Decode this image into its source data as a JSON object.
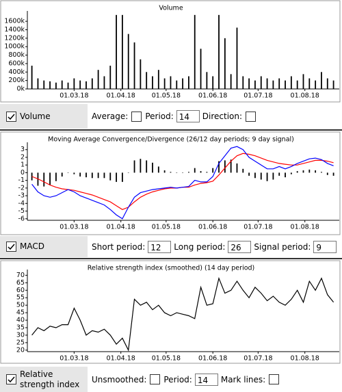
{
  "chart_data": [
    {
      "type": "bar",
      "title": "Volume",
      "x": [
        "01.02.18",
        "05.02.18",
        "09.02.18",
        "13.02.18",
        "17.02.18",
        "21.02.18",
        "25.02.18",
        "01.03.18",
        "05.03.18",
        "09.03.18",
        "13.03.18",
        "17.03.18",
        "21.03.18",
        "25.03.18",
        "29.03.18",
        "02.04.18",
        "06.04.18",
        "10.04.18",
        "14.04.18",
        "18.04.18",
        "22.04.18",
        "26.04.18",
        "30.04.18",
        "04.05.18",
        "08.05.18",
        "12.05.18",
        "16.05.18",
        "20.05.18",
        "24.05.18",
        "28.05.18",
        "01.06.18",
        "05.06.18",
        "09.06.18",
        "13.06.18",
        "17.06.18",
        "21.06.18",
        "25.06.18",
        "29.06.18",
        "03.07.18",
        "07.07.18",
        "11.07.18",
        "15.07.18",
        "19.07.18",
        "23.07.18",
        "27.07.18",
        "31.07.18",
        "04.08.18",
        "08.08.18",
        "12.08.18",
        "16.08.18",
        "20.08.18"
      ],
      "series": [
        {
          "color": "#000000",
          "values": [
            550000,
            250000,
            200000,
            180000,
            150000,
            200000,
            150000,
            250000,
            200000,
            180000,
            250000,
            450000,
            300000,
            550000,
            1750000,
            1750000,
            1300000,
            1100000,
            700000,
            400000,
            300000,
            450000,
            250000,
            300000,
            200000,
            250000,
            300000,
            1750000,
            950000,
            400000,
            300000,
            1750000,
            1200000,
            350000,
            1450000,
            300000,
            250000,
            200000,
            300000,
            250000,
            200000,
            250000,
            200000,
            300000,
            200000,
            350000,
            250000,
            200000,
            400000,
            250000,
            200000
          ]
        }
      ],
      "xlim": [
        "29.01.18",
        "22.08.18"
      ],
      "xticks": [
        "01.03.18",
        "01.04.18",
        "01.05.18",
        "01.06.18",
        "01.07.18",
        "01.08.18"
      ],
      "ylim": [
        0,
        1780000
      ],
      "yticks": [
        {
          "value": 0,
          "label": "0k"
        },
        {
          "value": 200000,
          "label": "200k"
        },
        {
          "value": 400000,
          "label": "400k"
        },
        {
          "value": 600000,
          "label": "600k"
        },
        {
          "value": 800000,
          "label": "800k"
        },
        {
          "value": 1000000,
          "label": "1000k"
        },
        {
          "value": 1200000,
          "label": "1200k"
        },
        {
          "value": 1400000,
          "label": "1400k"
        },
        {
          "value": 1600000,
          "label": "1600k"
        }
      ]
    },
    {
      "type": "line",
      "title": "Moving Average Convergence/Divergence (26/12 day periods; 9 day signal)",
      "x": [
        "01.02.18",
        "05.02.18",
        "09.02.18",
        "13.02.18",
        "17.02.18",
        "21.02.18",
        "25.02.18",
        "01.03.18",
        "05.03.18",
        "09.03.18",
        "13.03.18",
        "17.03.18",
        "21.03.18",
        "25.03.18",
        "29.03.18",
        "02.04.18",
        "06.04.18",
        "10.04.18",
        "14.04.18",
        "18.04.18",
        "22.04.18",
        "26.04.18",
        "30.04.18",
        "04.05.18",
        "08.05.18",
        "12.05.18",
        "16.05.18",
        "20.05.18",
        "24.05.18",
        "28.05.18",
        "01.06.18",
        "05.06.18",
        "09.06.18",
        "13.06.18",
        "17.06.18",
        "21.06.18",
        "25.06.18",
        "29.06.18",
        "03.07.18",
        "07.07.18",
        "11.07.18",
        "15.07.18",
        "19.07.18",
        "23.07.18",
        "27.07.18",
        "31.07.18",
        "04.08.18",
        "08.08.18",
        "12.08.18",
        "16.08.18",
        "20.08.18"
      ],
      "series": [
        {
          "type": "bar",
          "color": "#000000",
          "values": [
            -1,
            -1.7,
            -1.8,
            -1.6,
            -1.1,
            -0.5,
            0,
            -0.2,
            -0.5,
            -0.6,
            -0.7,
            -0.7,
            -0.7,
            -1,
            -1.2,
            -1.2,
            0,
            1.6,
            1.8,
            1.6,
            1.3,
            0.8,
            0.3,
            0.1,
            0,
            0,
            0.1,
            0.6,
            0.2,
            0.1,
            0.6,
            1.5,
            1.6,
            1.7,
            1.2,
            0.5,
            -0.4,
            -0.7,
            -0.9,
            -1.1,
            -0.9,
            -0.4,
            -0.6,
            -0.2,
            0.2,
            0.3,
            0.4,
            0.3,
            0.1,
            -0.3,
            -0.4
          ]
        },
        {
          "type": "line",
          "color": "#ff0000",
          "values": [
            -0.5,
            -0.8,
            -1.2,
            -1.6,
            -1.9,
            -2.1,
            -2.2,
            -2.3,
            -2.5,
            -2.7,
            -2.9,
            -3.2,
            -3.5,
            -3.8,
            -4.3,
            -4.8,
            -4.5,
            -3.8,
            -3.2,
            -2.8,
            -2.5,
            -2.3,
            -2.1,
            -2,
            -2,
            -1.9,
            -1.9,
            -1.6,
            -1.4,
            -1.3,
            -1.1,
            -0.3,
            0.6,
            1.5,
            2.2,
            2.5,
            2.4,
            2.2,
            1.9,
            1.6,
            1.4,
            1.2,
            1.1,
            1,
            1,
            1.2,
            1.4,
            1.6,
            1.6,
            1.5,
            1.3
          ]
        },
        {
          "type": "line",
          "color": "#0000ff",
          "values": [
            -1.5,
            -2.5,
            -3,
            -3.2,
            -3,
            -2.6,
            -2.2,
            -2.5,
            -3,
            -3.3,
            -3.6,
            -3.9,
            -4.2,
            -4.8,
            -5.5,
            -6,
            -4.5,
            -3.2,
            -2.6,
            -2.4,
            -2.2,
            -2.1,
            -2,
            -1.9,
            -2,
            -1.9,
            -1.8,
            -1,
            -1.2,
            -1.2,
            -0.5,
            1.2,
            2.2,
            3.2,
            3.4,
            3,
            2,
            1.5,
            1,
            0.5,
            0.5,
            0.8,
            0.5,
            0.8,
            1.2,
            1.5,
            1.8,
            1.9,
            1.7,
            1.2,
            0.9
          ]
        }
      ],
      "xlim": [
        "29.01.18",
        "22.08.18"
      ],
      "xticks": [
        "01.03.18",
        "01.04.18",
        "01.05.18",
        "01.06.18",
        "01.07.18",
        "01.08.18"
      ],
      "ylim": [
        -6.2,
        3.6
      ],
      "yticks": [
        -6,
        -5,
        -4,
        -3,
        -2,
        -1,
        0,
        1,
        2,
        3
      ]
    },
    {
      "type": "line",
      "title": "Relative strength index (smoothed) (14 day period)",
      "x": [
        "01.02.18",
        "05.02.18",
        "09.02.18",
        "13.02.18",
        "17.02.18",
        "21.02.18",
        "25.02.18",
        "01.03.18",
        "05.03.18",
        "09.03.18",
        "13.03.18",
        "17.03.18",
        "21.03.18",
        "25.03.18",
        "29.03.18",
        "02.04.18",
        "06.04.18",
        "10.04.18",
        "14.04.18",
        "18.04.18",
        "22.04.18",
        "26.04.18",
        "30.04.18",
        "04.05.18",
        "08.05.18",
        "12.05.18",
        "16.05.18",
        "20.05.18",
        "24.05.18",
        "28.05.18",
        "01.06.18",
        "05.06.18",
        "09.06.18",
        "13.06.18",
        "17.06.18",
        "21.06.18",
        "25.06.18",
        "29.06.18",
        "03.07.18",
        "07.07.18",
        "11.07.18",
        "15.07.18",
        "19.07.18",
        "23.07.18",
        "27.07.18",
        "31.07.18",
        "04.08.18",
        "08.08.18",
        "12.08.18",
        "16.08.18",
        "20.08.18"
      ],
      "series": [
        {
          "type": "line",
          "color": "#000000",
          "values": [
            30,
            35,
            33,
            36,
            35,
            37,
            37,
            48,
            40,
            30,
            33,
            32,
            34,
            30,
            24,
            28,
            20,
            54,
            50,
            52,
            47,
            50,
            45,
            43,
            45,
            44,
            43,
            41,
            62,
            50,
            51,
            68,
            58,
            60,
            66,
            60,
            55,
            62,
            58,
            53,
            56,
            52,
            50,
            54,
            60,
            52,
            66,
            60,
            68,
            57,
            52
          ]
        }
      ],
      "xlim": [
        "29.01.18",
        "22.08.18"
      ],
      "xticks": [
        "01.03.18",
        "01.04.18",
        "01.05.18",
        "01.06.18",
        "01.07.18",
        "01.08.18"
      ],
      "ylim": [
        19,
        72
      ],
      "yticks": [
        20,
        25,
        30,
        35,
        40,
        45,
        50,
        55,
        60,
        65,
        70
      ]
    }
  ],
  "controls": [
    {
      "label": "Volume",
      "checked": true,
      "fields": [
        {
          "label": "Average:",
          "checked": false
        },
        {
          "label": "Period:",
          "input": 14
        },
        {
          "label": "Direction:",
          "checked": false
        }
      ]
    },
    {
      "label": "MACD",
      "checked": true,
      "fields": [
        {
          "label": "Short period:",
          "input": 12
        },
        {
          "label": "Long period:",
          "input": 26
        },
        {
          "label": "Signal period:",
          "input": 9
        }
      ]
    },
    {
      "label": "Relative strength index",
      "checked": true,
      "fields": [
        {
          "label": "Unsmoothed:",
          "checked": false
        },
        {
          "label": "Period:",
          "input": 14
        },
        {
          "label": "Mark lines:",
          "checked": false
        }
      ]
    }
  ]
}
